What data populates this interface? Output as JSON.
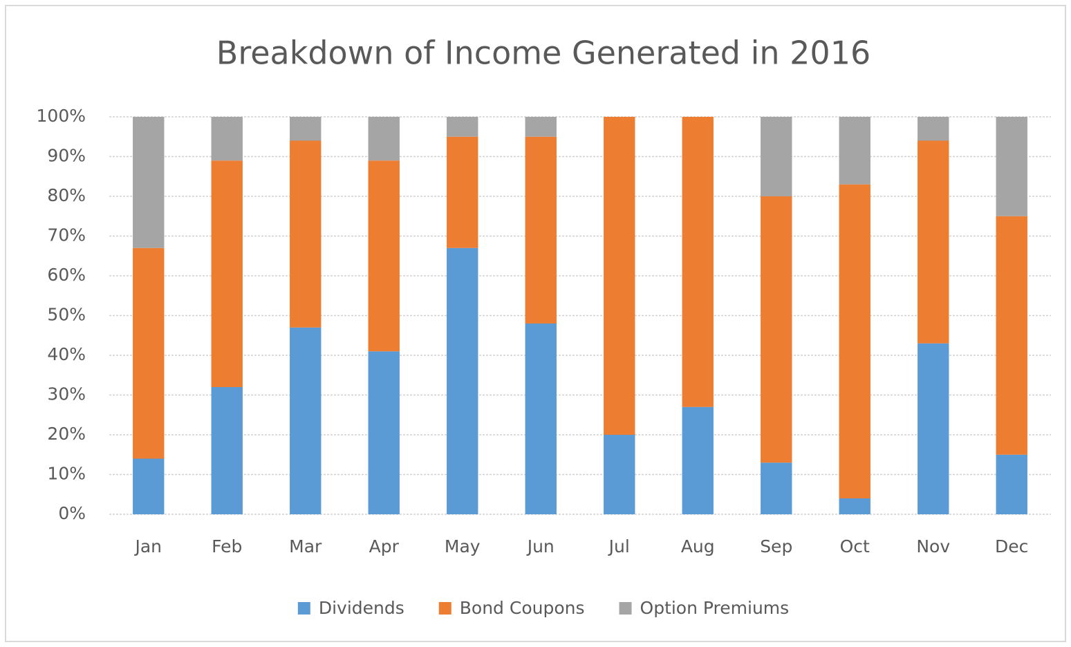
{
  "chart_data": {
    "type": "stacked_bar",
    "title": "Breakdown of Income Generated in 2016",
    "categories": [
      "Jan",
      "Feb",
      "Mar",
      "Apr",
      "May",
      "Jun",
      "Jul",
      "Aug",
      "Sep",
      "Oct",
      "Nov",
      "Dec"
    ],
    "series": [
      {
        "name": "Dividends",
        "color": "#5b9bd5",
        "values": [
          14,
          32,
          47,
          41,
          67,
          48,
          20,
          27,
          13,
          4,
          43,
          15
        ]
      },
      {
        "name": "Bond Coupons",
        "color": "#ed7d31",
        "values": [
          53,
          57,
          47,
          48,
          28,
          47,
          80,
          73,
          67,
          79,
          51,
          60
        ]
      },
      {
        "name": "Option Premiums",
        "color": "#a5a5a5",
        "values": [
          33,
          11,
          6,
          11,
          5,
          5,
          0,
          0,
          20,
          17,
          6,
          25
        ]
      }
    ],
    "ylim": [
      0,
      100
    ],
    "yticks": [
      {
        "value": 0,
        "label": "0%"
      },
      {
        "value": 10,
        "label": "10%"
      },
      {
        "value": 20,
        "label": "20%"
      },
      {
        "value": 30,
        "label": "30%"
      },
      {
        "value": 40,
        "label": "40%"
      },
      {
        "value": 50,
        "label": "50%"
      },
      {
        "value": 60,
        "label": "60%"
      },
      {
        "value": 70,
        "label": "70%"
      },
      {
        "value": 80,
        "label": "80%"
      },
      {
        "value": 90,
        "label": "90%"
      },
      {
        "value": 100,
        "label": "100%"
      }
    ],
    "grid": true,
    "legend": "bottom"
  }
}
